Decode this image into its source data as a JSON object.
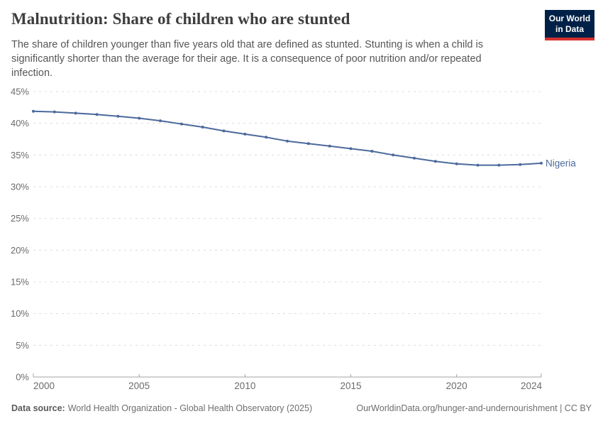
{
  "header": {
    "title": "Malnutrition: Share of children who are stunted",
    "subtitle": "The share of children younger than five years old that are defined as stunted. Stunting is when a child is significantly shorter than the average for their age. It is a consequence of poor nutrition and/or repeated infection.",
    "logo": {
      "line1": "Our World",
      "line2": "in Data",
      "bg_color": "#002147",
      "accent_color": "#d7312e"
    }
  },
  "chart_data": {
    "type": "line",
    "title": "Malnutrition: Share of children who are stunted",
    "xlabel": "",
    "ylabel": "",
    "x": [
      2000,
      2001,
      2002,
      2003,
      2004,
      2005,
      2006,
      2007,
      2008,
      2009,
      2010,
      2011,
      2012,
      2013,
      2014,
      2015,
      2016,
      2017,
      2018,
      2019,
      2020,
      2021,
      2022,
      2023,
      2024
    ],
    "series": [
      {
        "name": "Nigeria",
        "color": "#4c6a9c",
        "values": [
          41.9,
          41.8,
          41.6,
          41.4,
          41.1,
          40.8,
          40.4,
          39.9,
          39.4,
          38.8,
          38.3,
          37.8,
          37.2,
          36.8,
          36.4,
          36.0,
          35.6,
          35.0,
          34.5,
          34.0,
          33.6,
          33.4,
          33.4,
          33.5,
          33.7
        ]
      }
    ],
    "xlim": [
      2000,
      2024
    ],
    "ylim": [
      0,
      45
    ],
    "xticks": [
      2000,
      2005,
      2010,
      2015,
      2020,
      2024
    ],
    "yticks": [
      0,
      5,
      10,
      15,
      20,
      25,
      30,
      35,
      40,
      45
    ],
    "ytick_suffix": "%",
    "grid": "horizontal-dashed",
    "legend_position": "end-of-line-label",
    "colors": {
      "gridline": "#dcdcdc",
      "axis": "#a3a3a3",
      "tick_label": "#6b6b6b"
    }
  },
  "footer": {
    "datasource_label": "Data source:",
    "datasource_value": "World Health Organization - Global Health Observatory (2025)",
    "link": "OurWorldinData.org/hunger-and-undernourishment | CC BY"
  }
}
